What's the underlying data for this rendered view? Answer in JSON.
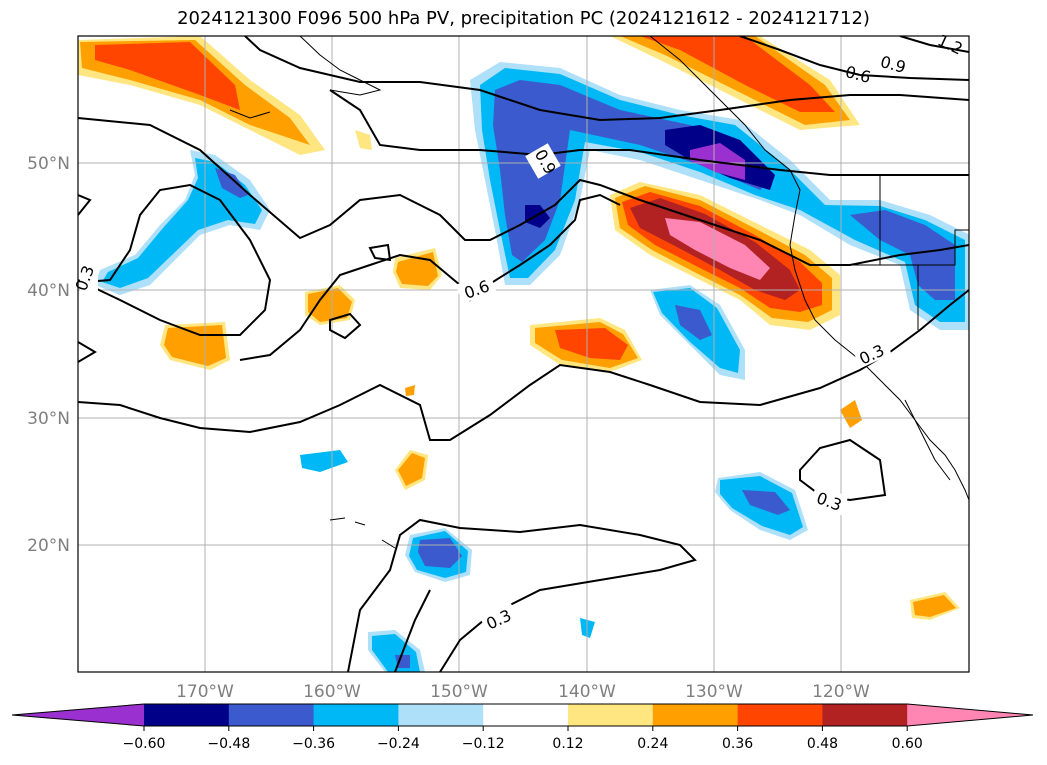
{
  "title": "2024121300 F096 500 hPa PV, precipitation PC (2024121612 - 2024121712)",
  "lon_ticks": [
    "170°W",
    "160°W",
    "150°W",
    "140°W",
    "130°W",
    "120°W"
  ],
  "lat_ticks": [
    "50°N",
    "40°N",
    "30°N",
    "20°N"
  ],
  "contour_labels": [
    "0.3",
    "0.6",
    "0.9",
    "0.6",
    "0.9",
    "0.3",
    "0.3",
    "0.3",
    "1.2"
  ],
  "colorbar": {
    "tick_labels": [
      "−0.60",
      "−0.48",
      "−0.36",
      "−0.24",
      "−0.12",
      "0.12",
      "0.24",
      "0.36",
      "0.48",
      "0.60"
    ],
    "colors": [
      "#9b30d0",
      "#000088",
      "#3a5acd",
      "#00b8f5",
      "#aee0fa",
      "#ffffff",
      "#ffe680",
      "#ffa000",
      "#ff4500",
      "#b22222",
      "#ff85b3"
    ]
  }
}
